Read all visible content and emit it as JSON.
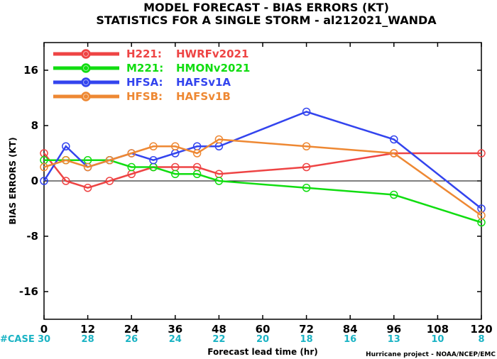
{
  "chart_data": {
    "type": "line",
    "title": "MODEL FORECAST - BIAS ERRORS (KT)",
    "subtitle": "STATISTICS FOR A SINGLE STORM - al212021_WANDA",
    "xlabel": "Forecast lead time (hr)",
    "ylabel": "BIAS ERRORS (KT)",
    "xlim": [
      0,
      120
    ],
    "ylim": [
      -20,
      20
    ],
    "xticks": [
      0,
      12,
      24,
      36,
      48,
      60,
      72,
      84,
      96,
      108,
      120
    ],
    "yticks": [
      -16,
      -8,
      0,
      8,
      16
    ],
    "legend_position": "top-left",
    "grid": false,
    "case_label": "#CASE",
    "cases": [
      30,
      28,
      26,
      24,
      22,
      20,
      18,
      16,
      13,
      10,
      8
    ],
    "credit": "Hurricane project - NOAA/NCEP/EMC",
    "series": [
      {
        "name": "H221: HWRFv2021",
        "label_code": "H221:",
        "label_model": "HWRFv2021",
        "color": "#ee4444",
        "x": [
          0,
          6,
          12,
          18,
          24,
          30,
          36,
          42,
          48,
          72,
          96,
          120
        ],
        "y": [
          4,
          0,
          -1,
          0,
          1,
          2,
          2,
          2,
          1,
          2,
          4,
          4
        ]
      },
      {
        "name": "M221: HMONv2021",
        "label_code": "M221:",
        "label_model": "HMONv2021",
        "color": "#11dd11",
        "x": [
          0,
          6,
          12,
          18,
          24,
          30,
          36,
          42,
          48,
          72,
          96,
          120
        ],
        "y": [
          3,
          3,
          3,
          3,
          2,
          2,
          1,
          1,
          0,
          -1,
          -2,
          -6
        ]
      },
      {
        "name": "HFSA: HAFSv1A",
        "label_code": "HFSA:",
        "label_model": "HAFSv1A",
        "color": "#3344ee",
        "x": [
          0,
          6,
          12,
          18,
          24,
          30,
          36,
          42,
          48,
          72,
          96,
          120
        ],
        "y": [
          0,
          5,
          2,
          3,
          4,
          3,
          4,
          5,
          5,
          10,
          6,
          -4
        ]
      },
      {
        "name": "HFSB: HAFSv1B",
        "label_code": "HFSB:",
        "label_model": "HAFSv1B",
        "color": "#ee8833",
        "x": [
          0,
          6,
          12,
          18,
          24,
          30,
          36,
          42,
          48,
          72,
          96,
          120
        ],
        "y": [
          2,
          3,
          2,
          3,
          4,
          5,
          5,
          4,
          6,
          5,
          4,
          -5
        ]
      }
    ]
  }
}
